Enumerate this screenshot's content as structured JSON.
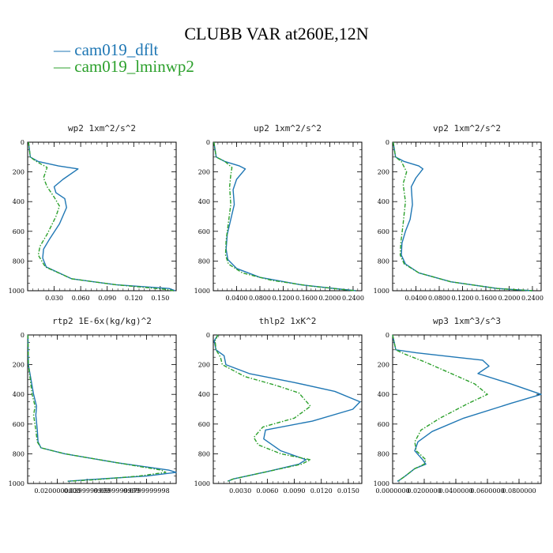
{
  "title": "CLUBB VAR at260E,12N",
  "legend": [
    {
      "name": "cam019_dflt",
      "color": "#1f77b4"
    },
    {
      "name": "cam019_lminwp2",
      "color": "#2ca02c"
    }
  ],
  "chart_data": [
    {
      "type": "line",
      "title": "wp2  1xm^2/s^2",
      "xlim": [
        0.0,
        0.168
      ],
      "ylim": [
        1000,
        0
      ],
      "xticks": [
        0.03,
        0.06,
        0.09,
        0.12,
        0.15
      ],
      "xtick_labels": [
        "0.030",
        "0.060",
        "0.090",
        "0.120",
        "0.150"
      ],
      "yticks": [
        0,
        200,
        400,
        600,
        800,
        1000
      ],
      "ytick_labels": [
        "0",
        "200",
        "400",
        "600",
        "800",
        "1000"
      ],
      "series": [
        {
          "name": "cam019_dflt",
          "x": [
            0.001,
            0.003,
            0.012,
            0.035,
            0.057,
            0.04,
            0.03,
            0.032,
            0.042,
            0.044,
            0.036,
            0.025,
            0.018,
            0.017,
            0.021,
            0.05,
            0.1,
            0.16,
            0.167
          ],
          "y": [
            0,
            100,
            130,
            160,
            180,
            250,
            300,
            340,
            380,
            440,
            550,
            650,
            720,
            780,
            840,
            920,
            960,
            985,
            1000
          ]
        },
        {
          "name": "cam019_lminwp2",
          "x": [
            0.001,
            0.003,
            0.01,
            0.022,
            0.018,
            0.022,
            0.03,
            0.036,
            0.032,
            0.022,
            0.014,
            0.012,
            0.02,
            0.05,
            0.1,
            0.155,
            0.165
          ],
          "y": [
            0,
            100,
            130,
            170,
            240,
            300,
            370,
            430,
            500,
            620,
            700,
            760,
            840,
            920,
            960,
            990,
            1000
          ]
        }
      ]
    },
    {
      "type": "line",
      "title": "up2  1xm^2/s^2",
      "xlim": [
        0.0,
        0.255
      ],
      "ylim": [
        1000,
        0
      ],
      "xticks": [
        0.04,
        0.08,
        0.12,
        0.16,
        0.2,
        0.24
      ],
      "xtick_labels": [
        "0.0400",
        "0.0800",
        "0.1200",
        "0.1600",
        "0.2000",
        "0.2400"
      ],
      "yticks": [
        0,
        200,
        400,
        600,
        800,
        1000
      ],
      "ytick_labels": [
        "0",
        "200",
        "400",
        "600",
        "800",
        "1000"
      ],
      "series": [
        {
          "name": "cam019_dflt",
          "x": [
            0.001,
            0.005,
            0.02,
            0.045,
            0.055,
            0.04,
            0.034,
            0.036,
            0.03,
            0.024,
            0.022,
            0.025,
            0.04,
            0.08,
            0.15,
            0.22,
            0.245
          ],
          "y": [
            0,
            100,
            130,
            160,
            180,
            250,
            320,
            420,
            520,
            620,
            720,
            790,
            850,
            910,
            960,
            990,
            1000
          ]
        },
        {
          "name": "cam019_lminwp2",
          "x": [
            0.001,
            0.005,
            0.02,
            0.032,
            0.03,
            0.028,
            0.03,
            0.026,
            0.022,
            0.021,
            0.026,
            0.05,
            0.1,
            0.17,
            0.23,
            0.245
          ],
          "y": [
            0,
            100,
            130,
            170,
            220,
            300,
            420,
            540,
            660,
            760,
            820,
            880,
            930,
            970,
            995,
            1000
          ]
        }
      ]
    },
    {
      "type": "line",
      "title": "vp2  1xm^2/s^2",
      "xlim": [
        0.0,
        0.255
      ],
      "ylim": [
        1000,
        0
      ],
      "xticks": [
        0.04,
        0.08,
        0.12,
        0.16,
        0.2,
        0.24
      ],
      "xtick_labels": [
        "0.0400",
        "0.0800",
        "0.1200",
        "0.1600",
        "0.2000",
        "0.2400"
      ],
      "yticks": [
        0,
        200,
        400,
        600,
        800,
        1000
      ],
      "ytick_labels": [
        "0",
        "200",
        "400",
        "600",
        "800",
        "1000"
      ],
      "series": [
        {
          "name": "cam019_dflt",
          "x": [
            0.001,
            0.005,
            0.02,
            0.045,
            0.052,
            0.04,
            0.032,
            0.034,
            0.03,
            0.022,
            0.016,
            0.015,
            0.022,
            0.045,
            0.1,
            0.18,
            0.24
          ],
          "y": [
            0,
            100,
            130,
            160,
            180,
            240,
            300,
            420,
            520,
            600,
            680,
            760,
            820,
            880,
            940,
            985,
            1000
          ]
        },
        {
          "name": "cam019_lminwp2",
          "x": [
            0.001,
            0.005,
            0.015,
            0.024,
            0.018,
            0.022,
            0.018,
            0.014,
            0.013,
            0.02,
            0.045,
            0.1,
            0.18,
            0.24
          ],
          "y": [
            0,
            100,
            130,
            200,
            280,
            400,
            550,
            680,
            760,
            820,
            880,
            940,
            985,
            1000
          ]
        }
      ]
    },
    {
      "type": "line",
      "title": "rtp2  1E-6x(kg/kg)^2",
      "xlim": [
        0.0,
        1e-07
      ],
      "ylim": [
        1000,
        0
      ],
      "xticks": [
        2e-08,
        4e-08,
        6e-08,
        8e-08
      ],
      "xtick_labels": [
        "0.0200000000",
        "0.0399999999",
        "0.0599999999",
        "0.0799999998"
      ],
      "yticks": [
        0,
        200,
        400,
        600,
        800,
        1000
      ],
      "ytick_labels": [
        "0",
        "200",
        "400",
        "600",
        "800",
        "1000"
      ],
      "series": [
        {
          "name": "cam019_dflt",
          "x": [
            2e-10,
            5e-10,
            4e-09,
            6e-09,
            5.5e-09,
            6.5e-09,
            7e-09,
            9e-09,
            2.5e-08,
            6e-08,
            9.5e-08,
            1e-07,
            8e-08,
            4e-08,
            2.7e-08
          ],
          "y": [
            0,
            200,
            400,
            480,
            540,
            640,
            720,
            760,
            800,
            860,
            910,
            925,
            950,
            975,
            985
          ]
        },
        {
          "name": "cam019_lminwp2",
          "x": [
            2e-10,
            5e-10,
            3e-09,
            5e-09,
            4e-09,
            5.5e-09,
            6.5e-09,
            9e-09,
            2.5e-08,
            6e-08,
            9e-08,
            9.3e-08,
            7.5e-08,
            4.5e-08,
            2.7e-08
          ],
          "y": [
            0,
            200,
            400,
            480,
            540,
            640,
            720,
            760,
            800,
            860,
            910,
            925,
            950,
            975,
            985
          ]
        }
      ]
    },
    {
      "type": "line",
      "title": "thlp2  1xK^2",
      "xlim": [
        0.0,
        0.0165
      ],
      "ylim": [
        1000,
        0
      ],
      "xticks": [
        0.003,
        0.006,
        0.009,
        0.012,
        0.015
      ],
      "xtick_labels": [
        "0.0030",
        "0.0060",
        "0.0090",
        "0.0120",
        "0.0150"
      ],
      "yticks": [
        0,
        200,
        400,
        600,
        800,
        1000
      ],
      "ytick_labels": [
        "0",
        "200",
        "400",
        "600",
        "800",
        "1000"
      ],
      "series": [
        {
          "name": "cam019_dflt",
          "x": [
            0.0005,
            0.0001,
            0.0003,
            0.0012,
            0.0014,
            0.004,
            0.009,
            0.0135,
            0.0163,
            0.0155,
            0.011,
            0.0058,
            0.0056,
            0.0075,
            0.0103,
            0.0095,
            0.006,
            0.0022,
            0.0016
          ],
          "y": [
            0,
            40,
            100,
            140,
            200,
            260,
            320,
            380,
            450,
            500,
            580,
            640,
            700,
            780,
            840,
            870,
            920,
            970,
            985
          ]
        },
        {
          "name": "cam019_lminwp2",
          "x": [
            0.0005,
            0.0002,
            0.0003,
            0.0008,
            0.001,
            0.0035,
            0.007,
            0.0095,
            0.0108,
            0.009,
            0.0055,
            0.0045,
            0.005,
            0.0075,
            0.0108,
            0.0098,
            0.006,
            0.0022,
            0.0016
          ],
          "y": [
            0,
            40,
            100,
            150,
            200,
            280,
            340,
            390,
            480,
            560,
            620,
            690,
            740,
            800,
            840,
            870,
            920,
            970,
            985
          ]
        }
      ]
    },
    {
      "type": "line",
      "title": "wp3  1xm^3/s^3",
      "xlim": [
        0.0,
        0.094
      ],
      "ylim": [
        1000,
        0
      ],
      "xticks": [
        0.0,
        0.02,
        0.04,
        0.06,
        0.08
      ],
      "xtick_labels": [
        "0.0000000",
        "0.0200000",
        "0.0400000",
        "0.0600000",
        "0.0800000"
      ],
      "yticks": [
        0,
        200,
        400,
        600,
        800,
        1000
      ],
      "ytick_labels": [
        "0",
        "200",
        "400",
        "600",
        "800",
        "1000"
      ],
      "series": [
        {
          "name": "cam019_dflt",
          "x": [
            0.0,
            0.002,
            0.015,
            0.04,
            0.057,
            0.061,
            0.054,
            0.075,
            0.094,
            0.075,
            0.045,
            0.025,
            0.016,
            0.014,
            0.019,
            0.021,
            0.014,
            0.008,
            0.004,
            0.003
          ],
          "y": [
            0,
            100,
            120,
            150,
            170,
            210,
            260,
            330,
            400,
            460,
            560,
            650,
            720,
            780,
            840,
            870,
            900,
            950,
            980,
            985
          ]
        },
        {
          "name": "cam019_lminwp2",
          "x": [
            0.0,
            0.002,
            0.008,
            0.02,
            0.035,
            0.052,
            0.06,
            0.048,
            0.03,
            0.018,
            0.014,
            0.015,
            0.021,
            0.02,
            0.014,
            0.008,
            0.004,
            0.003
          ],
          "y": [
            0,
            100,
            130,
            180,
            250,
            330,
            400,
            460,
            560,
            640,
            720,
            780,
            840,
            870,
            900,
            950,
            980,
            985
          ]
        }
      ]
    }
  ]
}
